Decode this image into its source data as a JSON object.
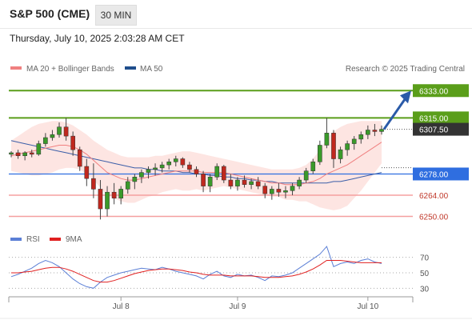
{
  "header": {
    "instrument": "S&P 500 (CME)",
    "timeframe": "30 MIN",
    "datetime": "Thursday, July 10, 2025 2:03:28 AM CET"
  },
  "legend": {
    "ma20": "MA 20 + Bollinger Bands",
    "ma50": "MA 50",
    "ma20_color": "#f08080",
    "ma50_color": "#1f4e8c",
    "credit": "Research © 2025 Trading Central"
  },
  "levels": [
    {
      "value": "6333.00",
      "num": 6333.0,
      "kind": "resistance",
      "color": "#5a9e1a"
    },
    {
      "value": "6315.00",
      "num": 6315.0,
      "kind": "resistance",
      "color": "#5a9e1a"
    },
    {
      "value": "6307.50",
      "num": 6307.5,
      "kind": "last",
      "color": "#333333"
    },
    {
      "value": "6278.00",
      "num": 6278.0,
      "kind": "pivot",
      "color": "#2f6ee0"
    },
    {
      "value": "6264.00",
      "num": 6264.0,
      "kind": "support",
      "color": "#f5a0a0"
    },
    {
      "value": "6250.00",
      "num": 6250.0,
      "kind": "support",
      "color": "#f5a0a0"
    }
  ],
  "rsi_panel": {
    "rsi_label": "RSI",
    "ma_label": "9MA",
    "rsi_color": "#5b7fd6",
    "ma_color": "#e02020",
    "ticks": [
      "70",
      "50",
      "30"
    ]
  },
  "x_axis": {
    "ticks": [
      "Jul 8",
      "Jul 9",
      "Jul 10"
    ]
  },
  "chart_data": {
    "type": "candlestick",
    "instrument": "S&P 500 (CME)",
    "interval": "30 MIN",
    "price_range": [
      6245,
      6340
    ],
    "ohlc": [
      [
        6291,
        6293,
        6289,
        6292
      ],
      [
        6292,
        6294,
        6288,
        6290
      ],
      [
        6290,
        6293,
        6287,
        6292
      ],
      [
        6292,
        6294,
        6289,
        6291
      ],
      [
        6291,
        6300,
        6290,
        6298
      ],
      [
        6298,
        6305,
        6296,
        6302
      ],
      [
        6302,
        6307,
        6300,
        6304
      ],
      [
        6304,
        6312,
        6302,
        6309
      ],
      [
        6309,
        6315,
        6300,
        6303
      ],
      [
        6303,
        6306,
        6290,
        6294
      ],
      [
        6294,
        6296,
        6280,
        6283
      ],
      [
        6283,
        6288,
        6270,
        6275
      ],
      [
        6275,
        6285,
        6262,
        6268
      ],
      [
        6268,
        6274,
        6248,
        6255
      ],
      [
        6255,
        6270,
        6250,
        6266
      ],
      [
        6266,
        6272,
        6258,
        6262
      ],
      [
        6262,
        6270,
        6258,
        6268
      ],
      [
        6268,
        6276,
        6265,
        6273
      ],
      [
        6273,
        6278,
        6268,
        6276
      ],
      [
        6276,
        6281,
        6272,
        6279
      ],
      [
        6279,
        6283,
        6275,
        6281
      ],
      [
        6281,
        6285,
        6277,
        6282
      ],
      [
        6282,
        6286,
        6279,
        6284
      ],
      [
        6284,
        6288,
        6281,
        6286
      ],
      [
        6286,
        6290,
        6283,
        6288
      ],
      [
        6288,
        6289,
        6282,
        6284
      ],
      [
        6284,
        6286,
        6279,
        6281
      ],
      [
        6281,
        6283,
        6276,
        6278
      ],
      [
        6278,
        6280,
        6266,
        6270
      ],
      [
        6270,
        6278,
        6266,
        6276
      ],
      [
        6276,
        6285,
        6274,
        6283
      ],
      [
        6283,
        6284,
        6272,
        6274
      ],
      [
        6274,
        6278,
        6268,
        6270
      ],
      [
        6270,
        6276,
        6267,
        6274
      ],
      [
        6274,
        6277,
        6269,
        6271
      ],
      [
        6271,
        6275,
        6268,
        6273
      ],
      [
        6273,
        6276,
        6268,
        6270
      ],
      [
        6270,
        6272,
        6262,
        6265
      ],
      [
        6265,
        6270,
        6261,
        6268
      ],
      [
        6268,
        6272,
        6263,
        6266
      ],
      [
        6266,
        6270,
        6262,
        6267
      ],
      [
        6267,
        6272,
        6264,
        6270
      ],
      [
        6270,
        6276,
        6268,
        6274
      ],
      [
        6274,
        6282,
        6272,
        6280
      ],
      [
        6280,
        6288,
        6278,
        6286
      ],
      [
        6286,
        6300,
        6284,
        6297
      ],
      [
        6297,
        6315,
        6295,
        6305
      ],
      [
        6305,
        6307,
        6282,
        6288
      ],
      [
        6288,
        6296,
        6285,
        6294
      ],
      [
        6294,
        6300,
        6290,
        6298
      ],
      [
        6298,
        6303,
        6294,
        6301
      ],
      [
        6301,
        6306,
        6298,
        6304
      ],
      [
        6304,
        6310,
        6301,
        6307
      ],
      [
        6307,
        6311,
        6303,
        6306
      ],
      [
        6306,
        6310,
        6304,
        6307.5
      ]
    ],
    "ma20": [
      6290,
      6291,
      6292,
      6293,
      6294,
      6295,
      6296,
      6297,
      6297,
      6296,
      6294,
      6291,
      6287,
      6283,
      6279,
      6277,
      6275,
      6274,
      6274,
      6275,
      6276,
      6277,
      6278,
      6279,
      6280,
      6280,
      6280,
      6280,
      6279,
      6279,
      6279,
      6279,
      6278,
      6277,
      6276,
      6275,
      6274,
      6273,
      6272,
      6272,
      6271,
      6271,
      6271,
      6272,
      6273,
      6275,
      6278,
      6280,
      6282,
      6284,
      6287,
      6290,
      6293,
      6296,
      6299
    ],
    "bollinger_upper": [
      6300,
      6303,
      6306,
      6309,
      6311,
      6312,
      6313,
      6313,
      6312,
      6310,
      6307,
      6304,
      6300,
      6297,
      6294,
      6292,
      6290,
      6289,
      6289,
      6289,
      6289,
      6290,
      6290,
      6291,
      6292,
      6293,
      6293,
      6292,
      6291,
      6290,
      6289,
      6288,
      6287,
      6286,
      6285,
      6284,
      6283,
      6282,
      6281,
      6281,
      6281,
      6281,
      6282,
      6284,
      6288,
      6294,
      6301,
      6306,
      6309,
      6311,
      6312,
      6313,
      6313,
      6313,
      6313
    ],
    "bollinger_lower": [
      6280,
      6279,
      6278,
      6277,
      6277,
      6278,
      6279,
      6281,
      6282,
      6282,
      6281,
      6278,
      6274,
      6269,
      6264,
      6262,
      6260,
      6259,
      6259,
      6261,
      6263,
      6264,
      6266,
      6267,
      6268,
      6267,
      6267,
      6268,
      6267,
      6268,
      6269,
      6270,
      6269,
      6268,
      6267,
      6266,
      6265,
      6264,
      6263,
      6263,
      6261,
      6261,
      6260,
      6260,
      6258,
      6256,
      6255,
      6254,
      6255,
      6257,
      6262,
      6267,
      6273,
      6279,
      6285
    ],
    "ma50": [
      6300,
      6299,
      6298,
      6297,
      6296,
      6295,
      6294,
      6293,
      6292,
      6291,
      6290,
      6289,
      6288,
      6287,
      6286,
      6285,
      6284,
      6283,
      6282,
      6282,
      6281,
      6281,
      6280,
      6280,
      6280,
      6279,
      6279,
      6278,
      6278,
      6277,
      6277,
      6276,
      6276,
      6275,
      6275,
      6274,
      6274,
      6273,
      6273,
      6272,
      6272,
      6272,
      6272,
      6272,
      6272,
      6272,
      6272,
      6273,
      6273,
      6274,
      6275,
      6276,
      6277,
      6278,
      6279
    ],
    "rsi": [
      45,
      48,
      52,
      56,
      62,
      66,
      63,
      58,
      50,
      42,
      36,
      32,
      30,
      38,
      44,
      47,
      50,
      52,
      54,
      56,
      55,
      54,
      57,
      55,
      52,
      50,
      48,
      46,
      42,
      48,
      52,
      46,
      44,
      48,
      46,
      47,
      44,
      40,
      46,
      45,
      47,
      50,
      56,
      62,
      68,
      74,
      84,
      58,
      62,
      64,
      62,
      66,
      68,
      64,
      62
    ],
    "rsi_ma": [
      50,
      50,
      51,
      52,
      54,
      56,
      57,
      57,
      55,
      52,
      48,
      44,
      40,
      38,
      38,
      40,
      43,
      46,
      49,
      51,
      53,
      54,
      55,
      55,
      54,
      53,
      51,
      50,
      48,
      47,
      47,
      47,
      46,
      46,
      46,
      46,
      45,
      44,
      44,
      44,
      45,
      46,
      48,
      51,
      55,
      60,
      66,
      66,
      66,
      65,
      64,
      63,
      63,
      63,
      63
    ],
    "rsi_range": [
      20,
      80
    ],
    "x_ticks": [
      {
        "label": "Jul 8",
        "index": 16
      },
      {
        "label": "Jul 9",
        "index": 33
      },
      {
        "label": "Jul 10",
        "index": 52
      }
    ]
  }
}
